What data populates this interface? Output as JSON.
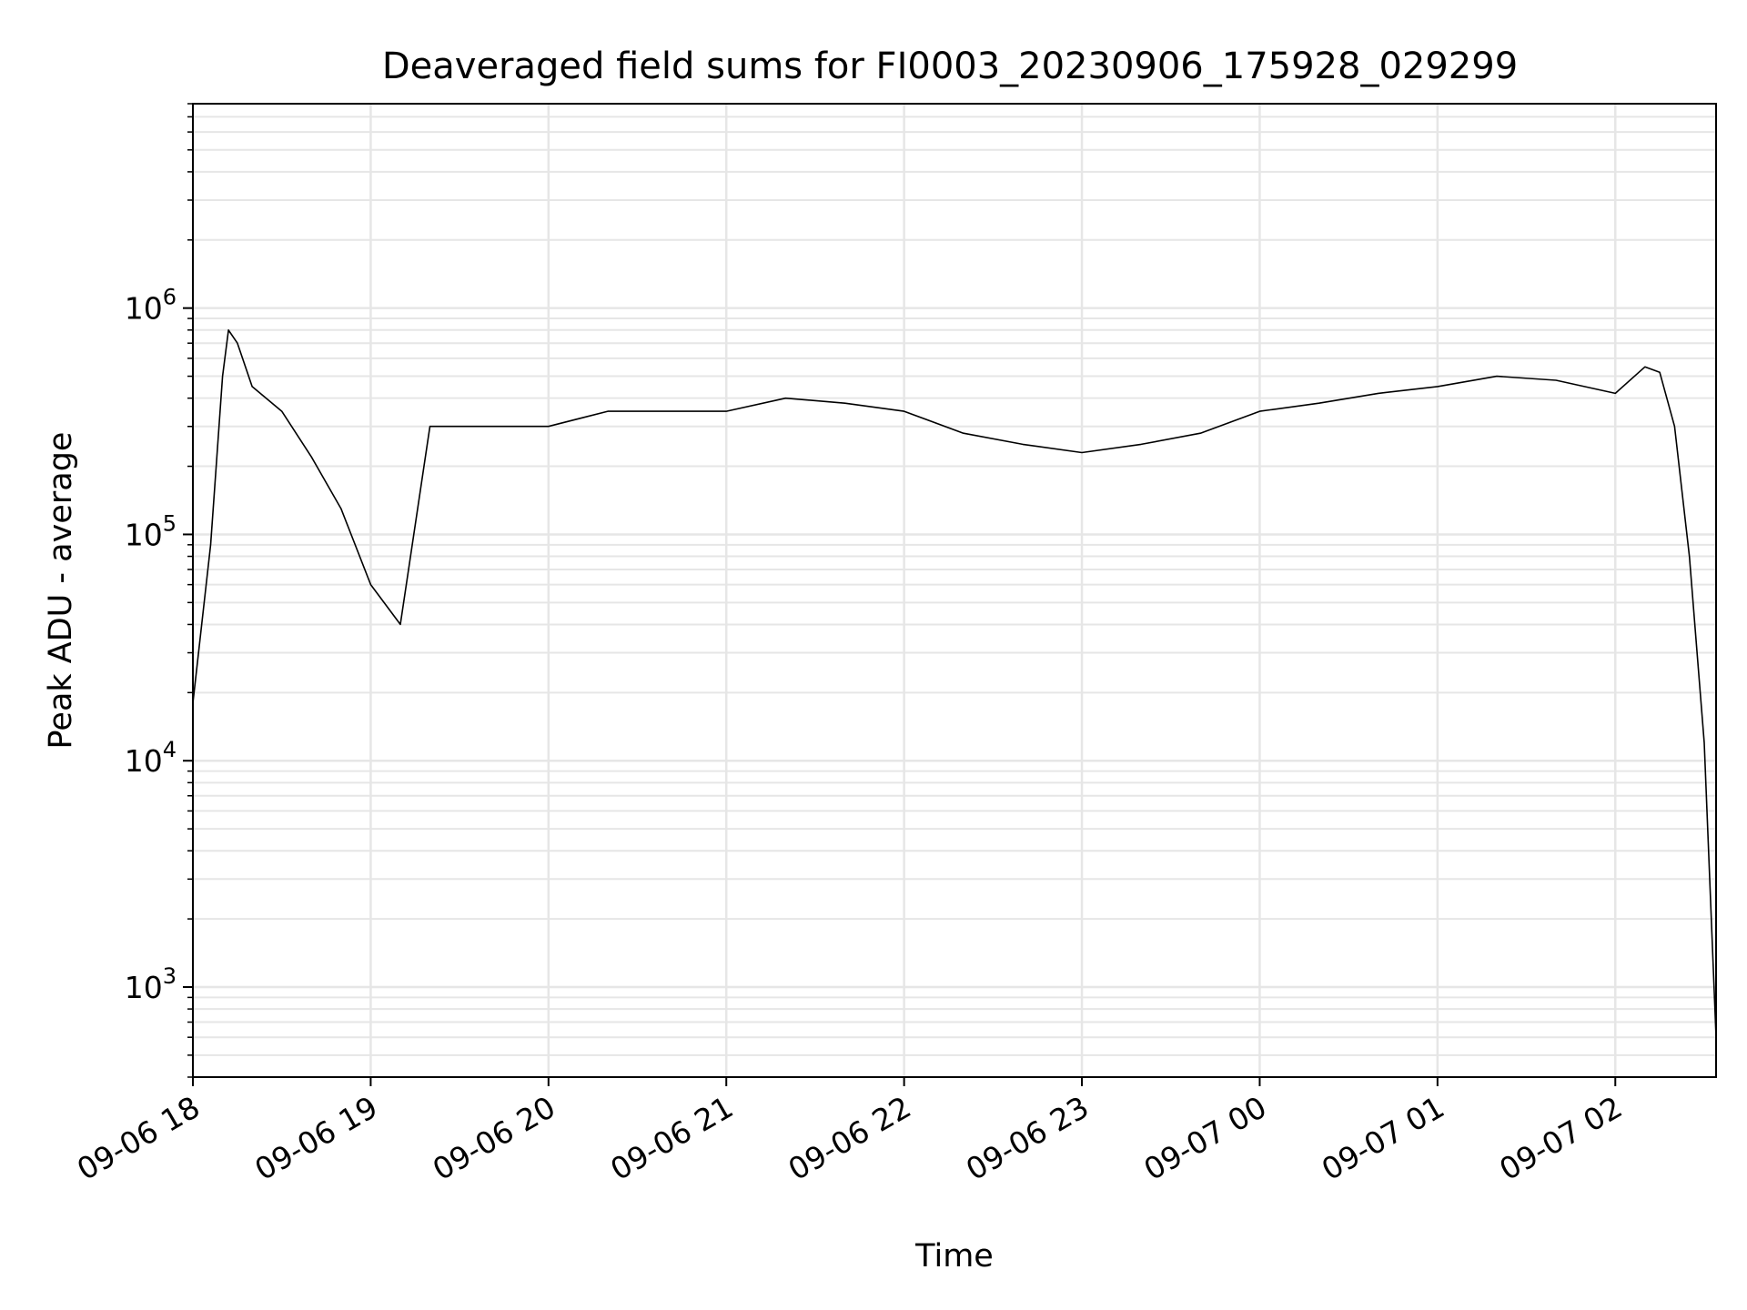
{
  "chart_data": {
    "type": "line",
    "title": "Deaveraged field sums for FI0003_20230906_175928_029299",
    "xlabel": "Time",
    "ylabel": "Peak ADU - average",
    "y_scale": "log",
    "xlim": [
      "2023-09-06 18:00",
      "2023-09-07 02:34"
    ],
    "ylim": [
      400,
      8000000
    ],
    "grid": true,
    "x_ticks": [
      "09-06 18",
      "09-06 19",
      "09-06 20",
      "09-06 21",
      "09-06 22",
      "09-06 23",
      "09-07 00",
      "09-07 01",
      "09-07 02"
    ],
    "y_ticks": [
      {
        "base": "10",
        "exp": "3",
        "value": 1000
      },
      {
        "base": "10",
        "exp": "4",
        "value": 10000
      },
      {
        "base": "10",
        "exp": "5",
        "value": 100000
      },
      {
        "base": "10",
        "exp": "6",
        "value": 1000000
      }
    ],
    "line_color": "#000000",
    "series": [
      {
        "x": [
          "2023-09-06 18:00",
          "2023-09-06 18:06",
          "2023-09-06 18:10",
          "2023-09-06 18:12",
          "2023-09-06 18:15",
          "2023-09-06 18:20",
          "2023-09-06 18:30",
          "2023-09-06 18:40",
          "2023-09-06 18:50",
          "2023-09-06 19:00",
          "2023-09-06 19:10",
          "2023-09-06 19:20",
          "2023-09-06 19:40",
          "2023-09-06 20:00",
          "2023-09-06 20:20",
          "2023-09-06 20:40",
          "2023-09-06 21:00",
          "2023-09-06 21:20",
          "2023-09-06 21:40",
          "2023-09-06 22:00",
          "2023-09-06 22:20",
          "2023-09-06 22:40",
          "2023-09-06 23:00",
          "2023-09-06 23:20",
          "2023-09-06 23:40",
          "2023-09-07 00:00",
          "2023-09-07 00:20",
          "2023-09-07 00:40",
          "2023-09-07 01:00",
          "2023-09-07 01:20",
          "2023-09-07 01:40",
          "2023-09-07 02:00",
          "2023-09-07 02:10",
          "2023-09-07 02:15",
          "2023-09-07 02:20",
          "2023-09-07 02:25",
          "2023-09-07 02:30",
          "2023-09-07 02:34"
        ],
        "y": [
          18000,
          90000,
          500000,
          800000,
          700000,
          450000,
          350000,
          220000,
          130000,
          60000,
          40000,
          300000,
          300000,
          300000,
          350000,
          350000,
          350000,
          400000,
          380000,
          350000,
          280000,
          250000,
          230000,
          250000,
          280000,
          350000,
          380000,
          420000,
          450000,
          500000,
          480000,
          420000,
          550000,
          520000,
          300000,
          80000,
          12000,
          600
        ]
      }
    ]
  }
}
